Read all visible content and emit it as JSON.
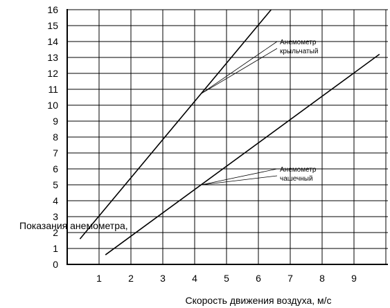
{
  "chart_data": {
    "type": "line",
    "xlabel": "Скорость движения воздуха, м/с",
    "ylabel": "Показания анемометра,",
    "xlim": [
      0.0,
      10.0
    ],
    "ylim": [
      0,
      16
    ],
    "x_ticks": [
      1,
      2,
      3,
      4,
      5,
      6,
      7,
      8,
      9
    ],
    "y_ticks": [
      0,
      1,
      2,
      3,
      4,
      5,
      6,
      7,
      8,
      9,
      10,
      11,
      12,
      13,
      14,
      15,
      16
    ],
    "grid": true,
    "series": [
      {
        "name": "Анемометр крыльчатый",
        "x": [
          0.4,
          6.4
        ],
        "y": [
          1.6,
          16.0
        ]
      },
      {
        "name": "Анемометр чашечный",
        "x": [
          1.2,
          9.8
        ],
        "y": [
          0.6,
          13.2
        ]
      }
    ],
    "annotations": [
      {
        "lines": [
          "Анемометр",
          "крыльчатый"
        ],
        "points_to_series": 0,
        "target_x": 4.2
      },
      {
        "lines": [
          "Анемометр",
          "чашечный"
        ],
        "points_to_series": 1,
        "target_x": 4.2
      }
    ]
  }
}
